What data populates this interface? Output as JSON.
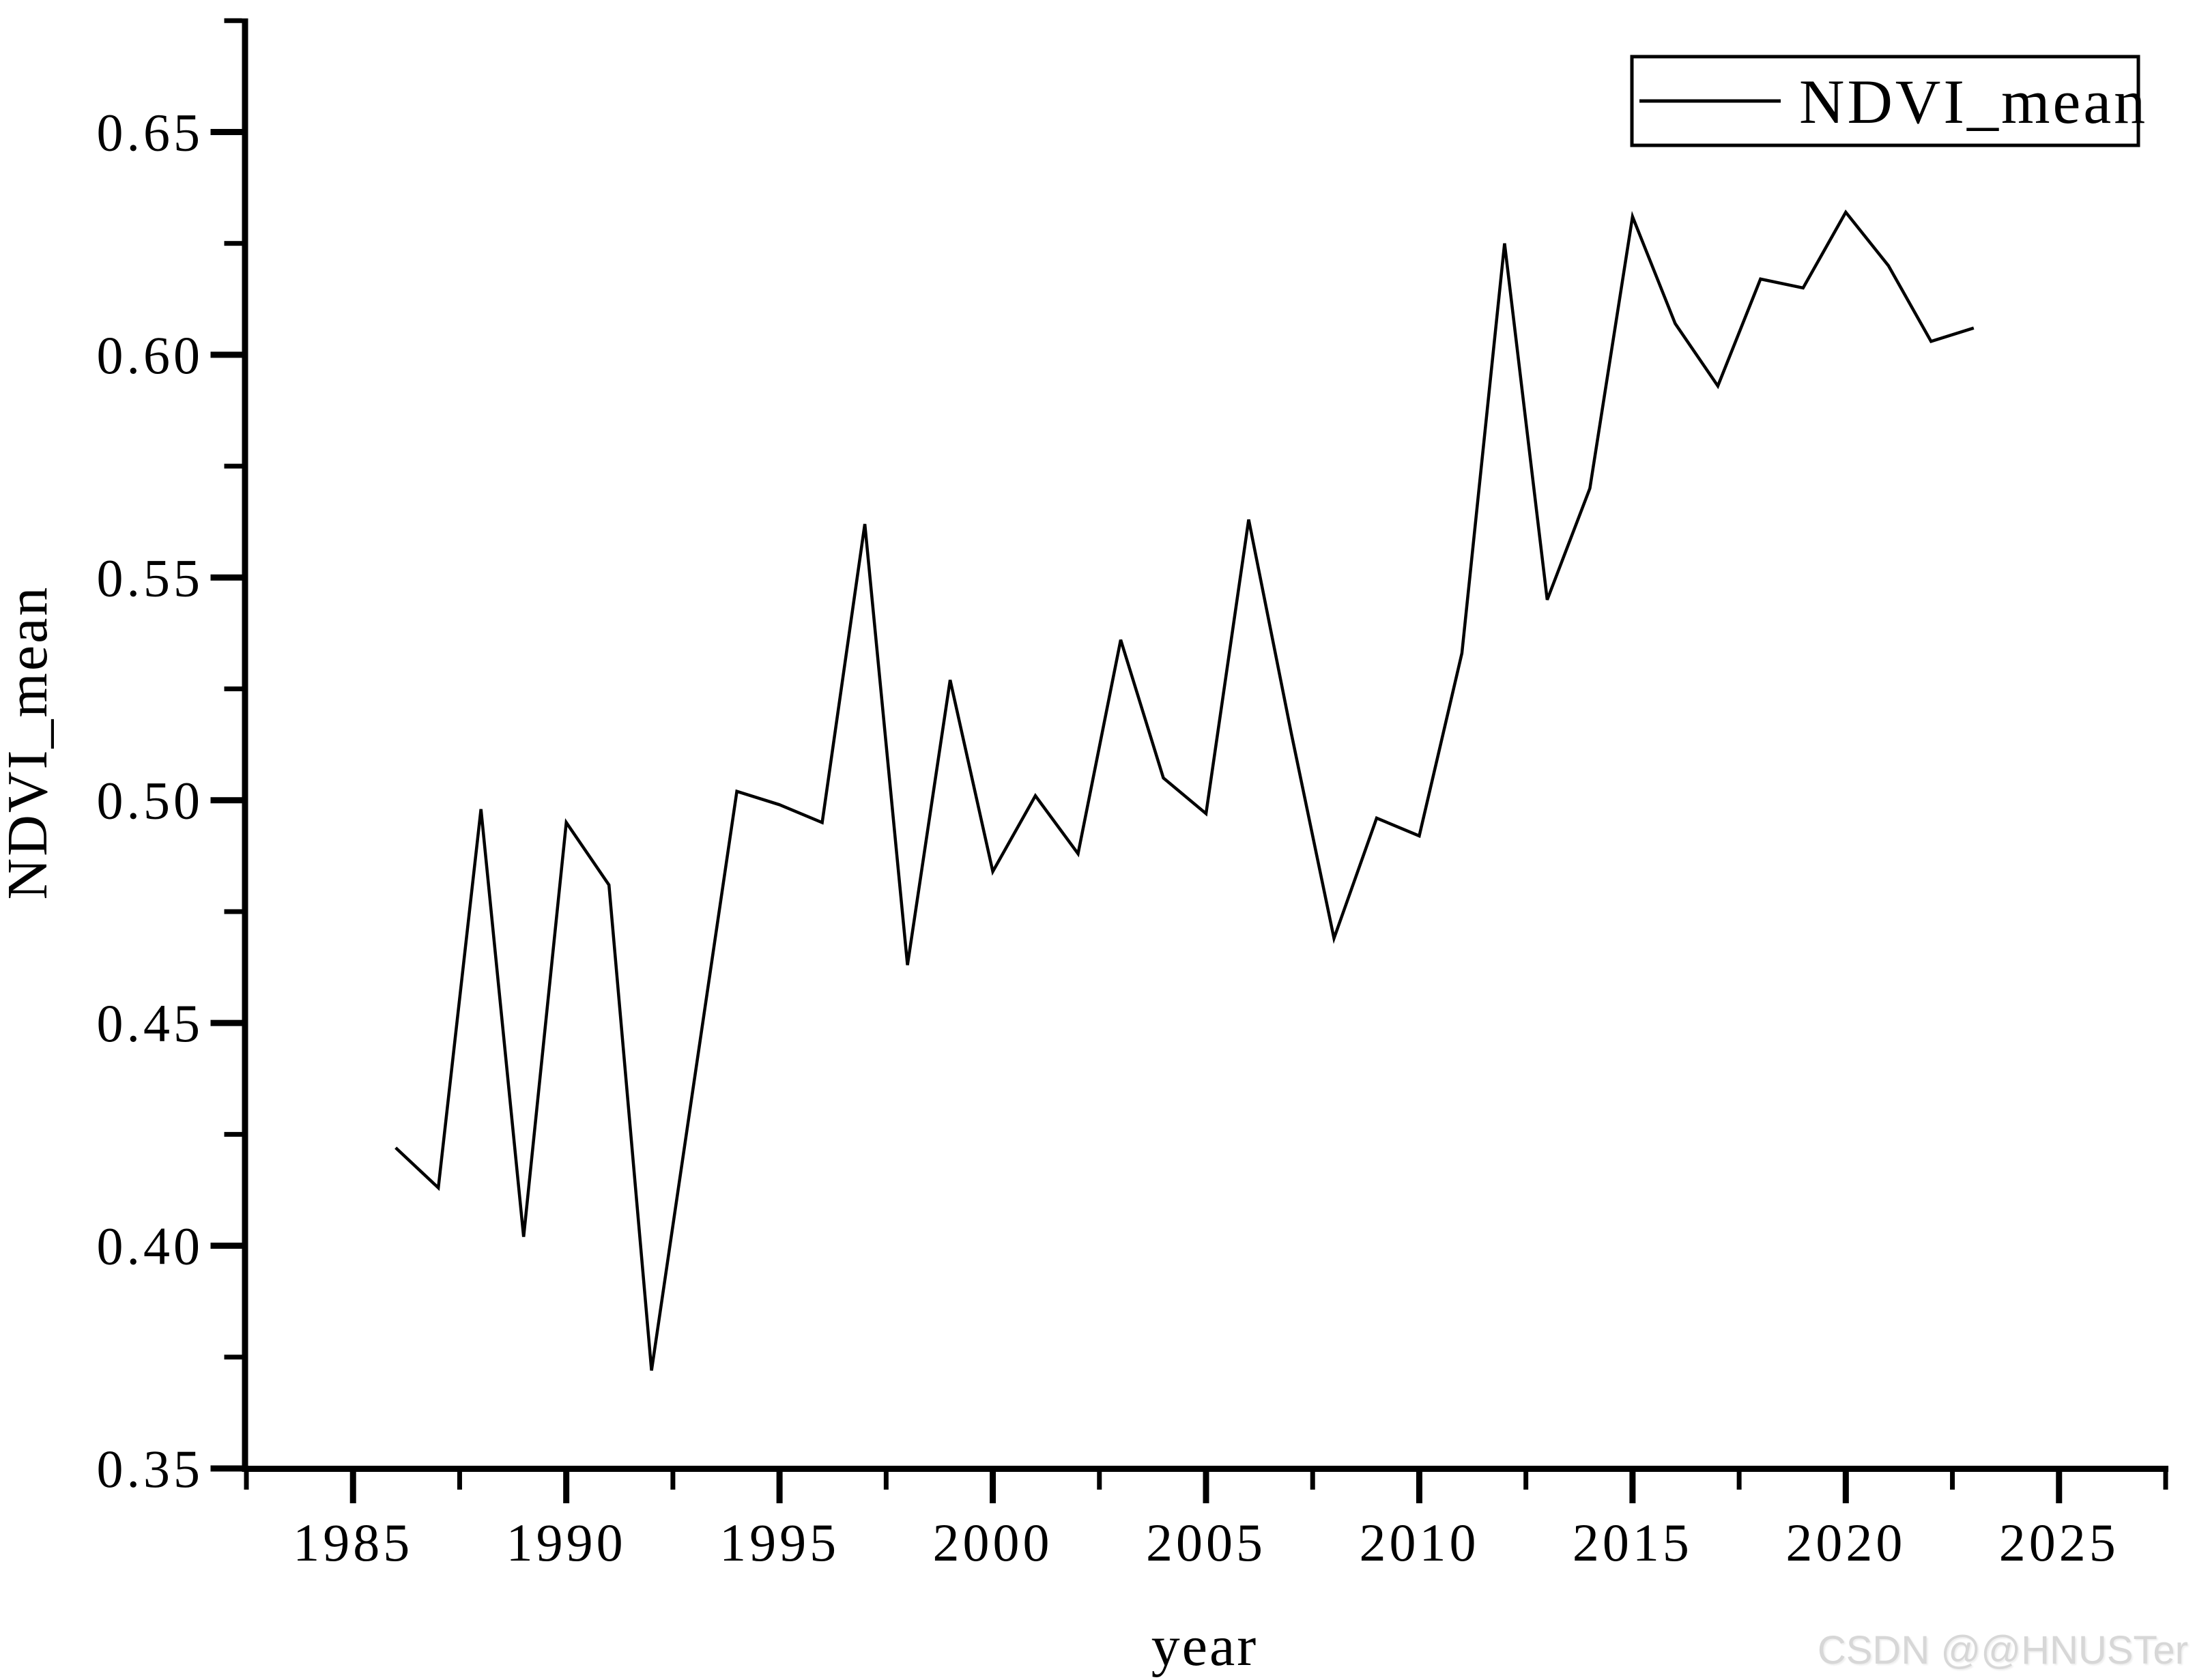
{
  "chart_data": {
    "type": "line",
    "title": "",
    "xlabel": "year",
    "ylabel": "NDVI_mean",
    "grid": false,
    "line_color": "#000000",
    "background_color": "#ffffff",
    "legend": {
      "position": "top-right",
      "entries": [
        "NDVI_mean"
      ]
    },
    "xlim": [
      1982.5,
      2027.5
    ],
    "ylim": [
      0.35,
      0.6755
    ],
    "x_major_ticks": [
      1985,
      1990,
      1995,
      2000,
      2005,
      2010,
      2015,
      2020,
      2025
    ],
    "x_tick_labels": [
      "1985",
      "1990",
      "1995",
      "2000",
      "2005",
      "2010",
      "2015",
      "2020",
      "2025"
    ],
    "x_minor_step": 2.5,
    "y_major_ticks": [
      0.35,
      0.4,
      0.45,
      0.5,
      0.55,
      0.6,
      0.65
    ],
    "y_tick_labels": [
      "0.35",
      "0.40",
      "0.45",
      "0.50",
      "0.55",
      "0.60",
      "0.65"
    ],
    "y_minor_step": 0.025,
    "x": [
      1986,
      1987,
      1988,
      1989,
      1990,
      1991,
      1992,
      1993,
      1994,
      1995,
      1996,
      1997,
      1998,
      1999,
      2000,
      2001,
      2002,
      2003,
      2004,
      2005,
      2006,
      2007,
      2008,
      2009,
      2010,
      2011,
      2012,
      2013,
      2014,
      2015,
      2016,
      2017,
      2018,
      2019,
      2020,
      2021,
      2022,
      2023
    ],
    "series": [
      {
        "name": "NDVI_mean",
        "values": [
          0.422,
          0.413,
          0.498,
          0.402,
          0.495,
          0.481,
          0.372,
          0.437,
          0.502,
          0.499,
          0.495,
          0.562,
          0.463,
          0.527,
          0.484,
          0.501,
          0.488,
          0.536,
          0.505,
          0.497,
          0.563,
          0.515,
          0.469,
          0.496,
          0.492,
          0.533,
          0.625,
          0.545,
          0.57,
          0.631,
          0.607,
          0.593,
          0.617,
          0.615,
          0.632,
          0.62,
          0.603,
          0.606
        ]
      }
    ]
  },
  "watermark": "CSDN @@HNUSTer"
}
